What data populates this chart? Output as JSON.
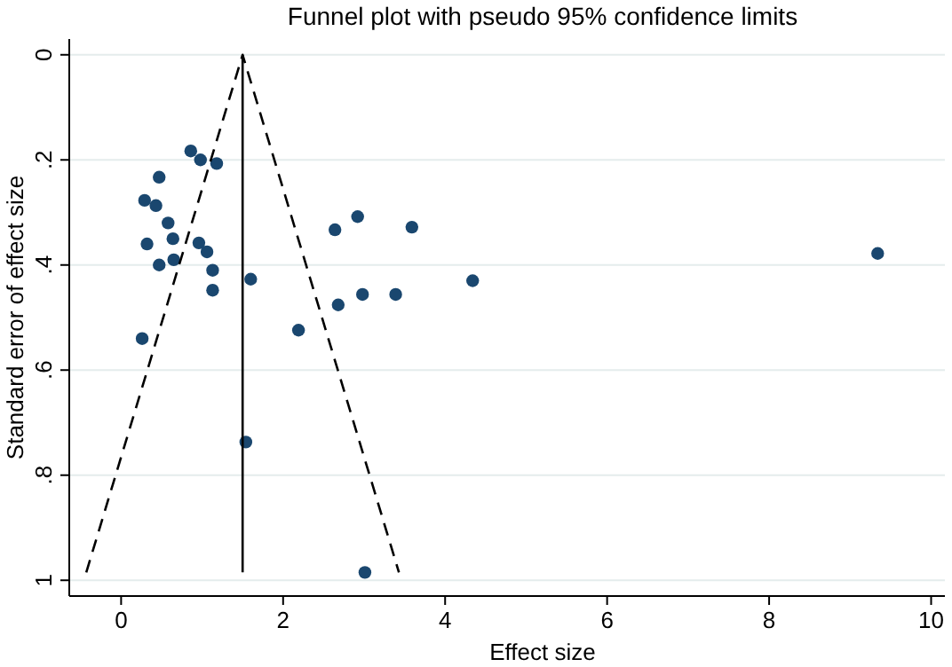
{
  "chart_data": {
    "type": "scatter",
    "title": "Funnel plot with pseudo 95% confidence limits",
    "xlabel": "Effect size",
    "ylabel": "Standard error of effect size",
    "xlim": [
      -0.64,
      10.17
    ],
    "ylim": [
      1.03,
      -0.03
    ],
    "xticks": [
      0,
      2,
      4,
      6,
      8,
      10
    ],
    "yticks": [
      {
        "value": 0,
        "label": "0"
      },
      {
        "value": 0.2,
        "label": ".2"
      },
      {
        "value": 0.4,
        "label": ".4"
      },
      {
        "value": 0.6,
        "label": ".6"
      },
      {
        "value": 0.8,
        "label": ".8"
      },
      {
        "value": 1,
        "label": "1"
      }
    ],
    "grid": "y",
    "series": [
      {
        "color": "#1a476f",
        "marker": "circle",
        "x": [
          0.86,
          0.98,
          1.18,
          0.47,
          0.29,
          0.43,
          0.58,
          0.64,
          0.32,
          0.96,
          1.06,
          0.47,
          0.65,
          1.13,
          1.13,
          1.6,
          2.64,
          2.92,
          3.59,
          4.34,
          2.98,
          3.39,
          2.68,
          2.19,
          0.26,
          9.34,
          1.54,
          3.01
        ],
        "values": [
          0.183,
          0.2,
          0.207,
          0.233,
          0.277,
          0.287,
          0.32,
          0.35,
          0.36,
          0.358,
          0.375,
          0.4,
          0.39,
          0.41,
          0.448,
          0.427,
          0.333,
          0.308,
          0.328,
          0.43,
          0.456,
          0.456,
          0.476,
          0.524,
          0.54,
          0.378,
          0.737,
          0.985
        ]
      },
      {
        "type": "line",
        "color": "#000000",
        "line_style": "solid",
        "x": [
          1.5,
          1.5
        ],
        "values": [
          0,
          0.985
        ]
      },
      {
        "type": "line",
        "color": "#000000",
        "line_style": "dashed",
        "x": [
          -0.43,
          1.5,
          3.43
        ],
        "values": [
          0.985,
          0,
          0.985
        ]
      }
    ]
  }
}
